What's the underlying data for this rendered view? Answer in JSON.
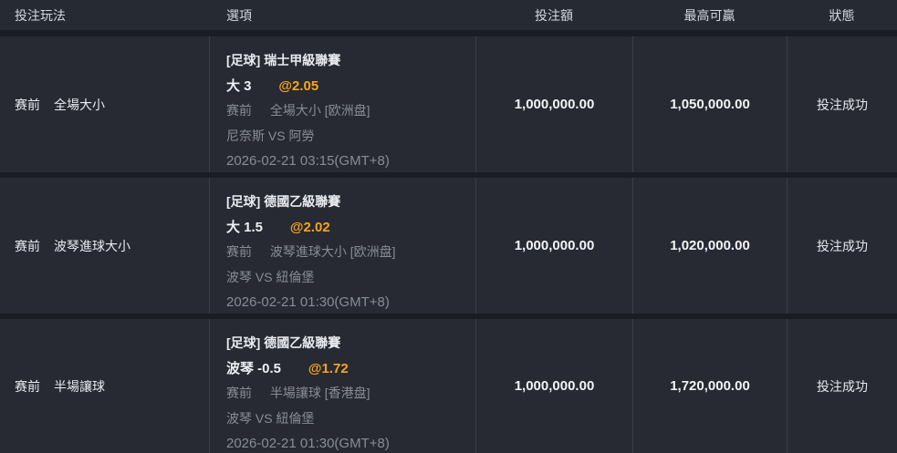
{
  "colors": {
    "odds_accent": "#f9a51a",
    "row_background": "#272a33",
    "divider": "#3a3f49"
  },
  "table": {
    "columns": {
      "play_type": "投注玩法",
      "option": "選項",
      "bet_amount": "投注額",
      "max_win": "最高可贏",
      "status": "狀態"
    },
    "rows": [
      {
        "play_period": "赛前",
        "play_name": "全場大小",
        "league_line": "[足球] 瑞士甲級聯賽",
        "selection": "大 3",
        "odds": "@2.05",
        "market_period": "赛前",
        "market_detail": "全場大小 [欧洲盘]",
        "teams": "尼奈斯 VS 阿勞",
        "event_time": "2026-02-21 03:15(GMT+8)",
        "bet_amount": "1,000,000.00",
        "max_win": "1,050,000.00",
        "status": "投注成功"
      },
      {
        "play_period": "赛前",
        "play_name": "波琴進球大小",
        "league_line": "[足球] 德國乙級聯賽",
        "selection": "大 1.5",
        "odds": "@2.02",
        "market_period": "赛前",
        "market_detail": "波琴進球大小 [欧洲盘]",
        "teams": "波琴 VS 紐倫堡",
        "event_time": "2026-02-21 01:30(GMT+8)",
        "bet_amount": "1,000,000.00",
        "max_win": "1,020,000.00",
        "status": "投注成功"
      },
      {
        "play_period": "赛前",
        "play_name": "半場讓球",
        "league_line": "[足球] 德國乙級聯賽",
        "selection": "波琴 -0.5",
        "odds": "@1.72",
        "market_period": "赛前",
        "market_detail": "半場讓球 [香港盘]",
        "teams": "波琴 VS 紐倫堡",
        "event_time": "2026-02-21 01:30(GMT+8)",
        "bet_amount": "1,000,000.00",
        "max_win": "1,720,000.00",
        "status": "投注成功"
      }
    ]
  }
}
